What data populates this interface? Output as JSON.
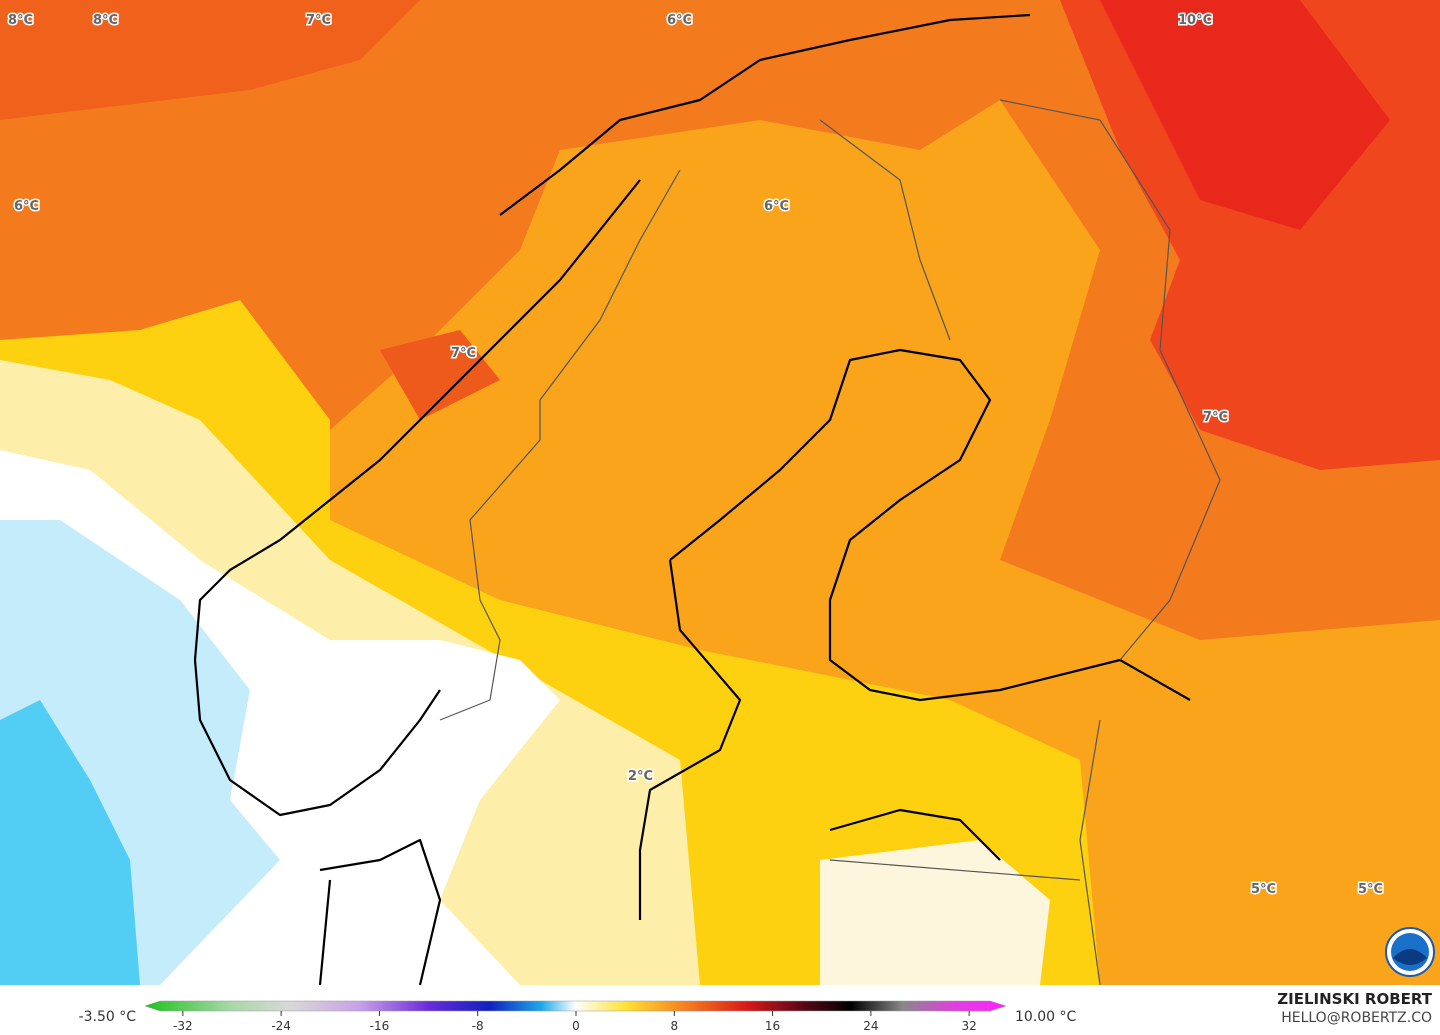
{
  "map": {
    "labels": [
      "8°C",
      "8°C",
      "7°C",
      "6°C",
      "10°C",
      "6°C",
      "6°C",
      "7°C",
      "7°C",
      "2°C",
      "5°C",
      "5°C"
    ]
  },
  "legend": {
    "min_label": "-3.50 °C",
    "max_label": "10.00 °C",
    "lim": [
      -35,
      35
    ],
    "ticks": [
      -32,
      -24,
      -16,
      -8,
      0,
      8,
      16,
      24,
      32
    ]
  },
  "credits": {
    "author": "ZIELINSKI ROBERT",
    "email": "HELLO@ROBERTZ.CO"
  }
}
